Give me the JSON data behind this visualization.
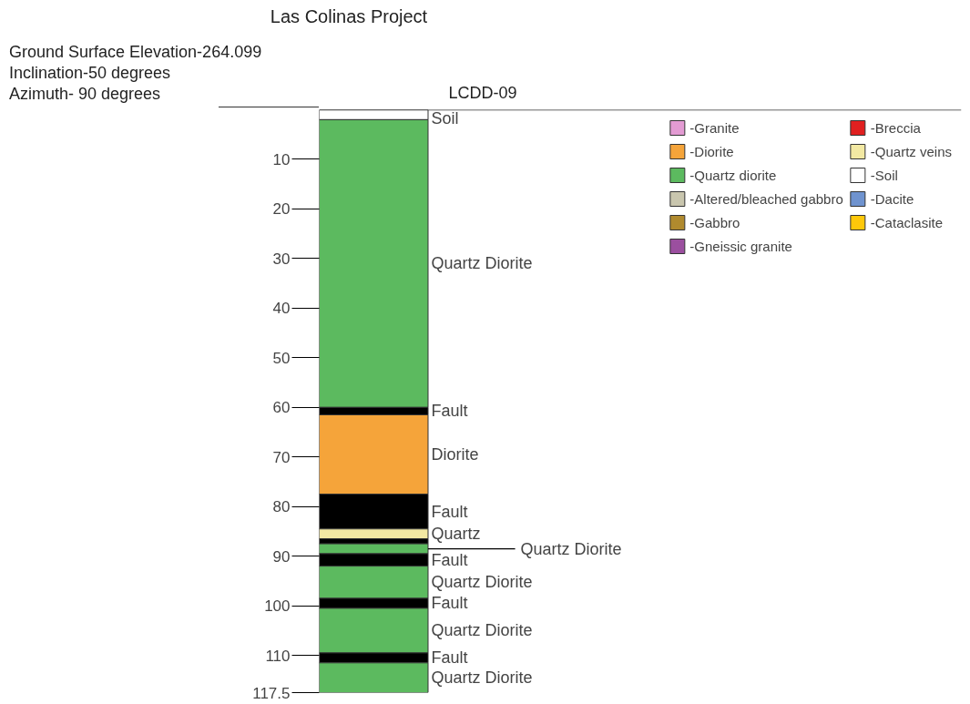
{
  "chart_data": {
    "type": "bar",
    "stacked": true,
    "title": "Las Colinas Project",
    "annotations": [
      "Ground Surface Elevation-264.099",
      "Inclination-50 degrees",
      "Azimuth- 90 degrees"
    ],
    "categories": [
      null
    ],
    "ylim": [
      117.5,
      0
    ],
    "yticks": [
      10,
      20,
      30,
      40,
      50,
      60,
      70,
      80,
      90,
      100,
      110,
      117.5
    ],
    "tick_labels": "y",
    "grid": false,
    "legend": "top right",
    "ref_lines": [
      {
        "axis": "y",
        "value": 0,
        "label": "LCDD-09"
      }
    ],
    "series": [
      {
        "name": "Soil",
        "color": "#ffffff",
        "values": [
          2
        ]
      },
      {
        "name": "Quartz Diorite",
        "color": "#5cba5f",
        "values": [
          58
        ]
      },
      {
        "name": "Fault",
        "color": "#000000",
        "values": [
          1.5
        ]
      },
      {
        "name": "Diorite",
        "color": "#f5a43a",
        "values": [
          16
        ]
      },
      {
        "name": "Fault",
        "color": "#000000",
        "values": [
          7
        ]
      },
      {
        "name": "Quartz",
        "color": "#f3e9a3",
        "values": [
          2
        ]
      },
      {
        "color": "#000000",
        "values": [
          1
        ]
      },
      {
        "name": "Quartz Diorite",
        "color": "#5cba5f",
        "values": [
          2
        ]
      },
      {
        "name": "Fault",
        "color": "#000000",
        "values": [
          2.5
        ]
      },
      {
        "name": "Quartz Diorite",
        "color": "#5cba5f",
        "values": [
          6.5
        ]
      },
      {
        "name": "Fault",
        "color": "#000000",
        "values": [
          2
        ]
      },
      {
        "name": "Quartz Diorite",
        "color": "#5cba5f",
        "values": [
          9
        ]
      },
      {
        "name": "Fault",
        "color": "#000000",
        "values": [
          2
        ]
      },
      {
        "name": "Quartz Diorite",
        "color": "#5cba5f",
        "values": [
          6
        ]
      },
      {
        "name": "-Granite",
        "color": "#e39bd3",
        "values": [
          null
        ]
      },
      {
        "name": "-Diorite",
        "color": "#f5a43a",
        "values": [
          null
        ]
      },
      {
        "name": "-Quartz diorite",
        "color": "#5cba5f",
        "values": [
          null
        ]
      },
      {
        "name": "-Altered/bleached gabbro",
        "color": "#c9c6ae",
        "values": [
          null
        ]
      },
      {
        "name": "-Gabbro",
        "color": "#b08a2e",
        "values": [
          null
        ]
      },
      {
        "name": "-Gneissic granite",
        "color": "#9b4f9f",
        "values": [
          null
        ]
      },
      {
        "name": "-Breccia",
        "color": "#e02020",
        "values": [
          null
        ]
      },
      {
        "name": "-Quartz veins",
        "color": "#f3e9a3",
        "values": [
          null
        ]
      },
      {
        "name": "-Soil",
        "color": "#ffffff",
        "values": [
          null
        ]
      },
      {
        "name": "-Dacite",
        "color": "#6f93cf",
        "values": [
          null
        ]
      },
      {
        "name": "-Cataclasite",
        "color": "#fec80a",
        "values": [
          null
        ]
      }
    ]
  }
}
